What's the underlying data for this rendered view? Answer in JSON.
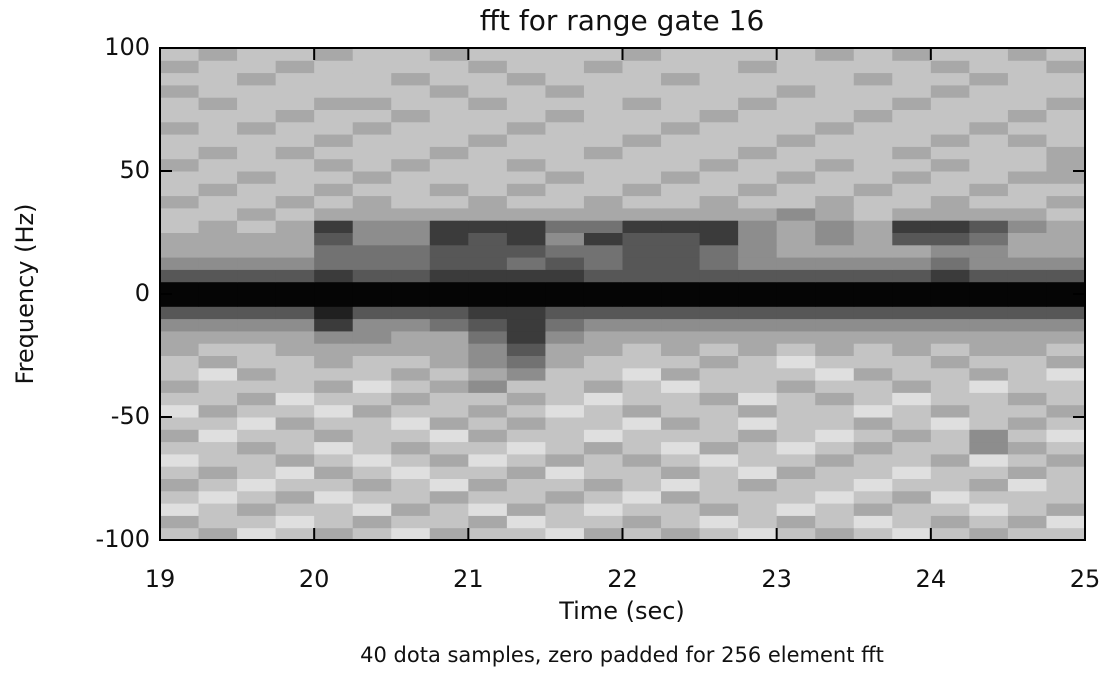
{
  "chart_data": {
    "type": "heatmap",
    "title": "fft for range gate 16",
    "xlabel": "Time (sec)",
    "ylabel": "Frequency (Hz)",
    "note": "40 dota samples, zero padded for  256 element fft",
    "xlim": [
      19,
      25
    ],
    "xticks": [
      19,
      20,
      21,
      22,
      23,
      24,
      25
    ],
    "ylim": [
      -100,
      100
    ],
    "yticks": [
      -100,
      -50,
      0,
      50,
      100
    ],
    "xbins": [
      19,
      19.25,
      19.5,
      19.75,
      20,
      20.25,
      20.5,
      20.75,
      21,
      21.25,
      21.5,
      21.75,
      22,
      22.25,
      22.5,
      22.75,
      23,
      23.25,
      23.5,
      23.75,
      24,
      24.25,
      24.5,
      24.75,
      25
    ],
    "ybins": [
      -100,
      -95,
      -90,
      -85,
      -80,
      -75,
      -70,
      -65,
      -60,
      -55,
      -50,
      -45,
      -40,
      -35,
      -30,
      -25,
      -20,
      -15,
      -10,
      -5,
      0,
      5,
      10,
      15,
      20,
      25,
      30,
      35,
      40,
      45,
      50,
      55,
      60,
      65,
      70,
      75,
      80,
      85,
      90,
      95,
      100
    ],
    "z": [
      [
        2,
        3,
        1,
        2,
        3,
        2,
        1,
        3,
        2,
        2,
        1,
        3,
        2,
        3,
        2,
        1,
        2,
        3,
        2,
        1,
        2,
        3,
        2,
        2
      ],
      [
        3,
        2,
        2,
        1,
        2,
        3,
        2,
        2,
        3,
        1,
        2,
        2,
        3,
        2,
        1,
        2,
        3,
        2,
        1,
        2,
        3,
        2,
        3,
        1
      ],
      [
        1,
        2,
        3,
        2,
        2,
        1,
        3,
        2,
        1,
        3,
        2,
        1,
        2,
        2,
        3,
        2,
        1,
        2,
        3,
        2,
        2,
        1,
        2,
        3
      ],
      [
        2,
        1,
        2,
        3,
        1,
        2,
        2,
        3,
        2,
        2,
        3,
        2,
        1,
        3,
        2,
        2,
        2,
        1,
        2,
        3,
        1,
        2,
        2,
        2
      ],
      [
        3,
        2,
        1,
        2,
        2,
        3,
        2,
        1,
        3,
        2,
        2,
        3,
        2,
        1,
        2,
        3,
        2,
        2,
        1,
        2,
        2,
        3,
        1,
        2
      ],
      [
        2,
        3,
        2,
        1,
        3,
        2,
        1,
        2,
        2,
        3,
        1,
        2,
        2,
        3,
        2,
        1,
        3,
        2,
        2,
        1,
        2,
        2,
        3,
        2
      ],
      [
        1,
        2,
        2,
        3,
        2,
        1,
        2,
        3,
        1,
        2,
        3,
        2,
        3,
        2,
        1,
        2,
        2,
        3,
        2,
        2,
        3,
        1,
        2,
        3
      ],
      [
        2,
        2,
        3,
        2,
        1,
        2,
        3,
        2,
        2,
        1,
        2,
        3,
        2,
        1,
        3,
        2,
        1,
        2,
        3,
        2,
        2,
        4,
        3,
        2
      ],
      [
        3,
        1,
        2,
        2,
        3,
        2,
        2,
        1,
        3,
        2,
        2,
        1,
        2,
        2,
        2,
        3,
        2,
        1,
        2,
        3,
        2,
        4,
        2,
        1
      ],
      [
        2,
        2,
        1,
        3,
        2,
        2,
        1,
        3,
        2,
        3,
        2,
        2,
        1,
        3,
        2,
        1,
        2,
        2,
        3,
        2,
        1,
        2,
        3,
        2
      ],
      [
        1,
        3,
        2,
        2,
        1,
        3,
        2,
        2,
        3,
        2,
        1,
        2,
        3,
        2,
        2,
        3,
        2,
        2,
        1,
        2,
        3,
        2,
        2,
        3
      ],
      [
        2,
        2,
        3,
        1,
        2,
        2,
        3,
        2,
        2,
        3,
        2,
        1,
        2,
        2,
        3,
        1,
        2,
        3,
        2,
        1,
        2,
        2,
        3,
        2
      ],
      [
        3,
        2,
        2,
        2,
        3,
        1,
        2,
        3,
        4,
        2,
        2,
        3,
        2,
        1,
        2,
        2,
        3,
        2,
        2,
        3,
        2,
        1,
        2,
        2
      ],
      [
        2,
        1,
        3,
        2,
        2,
        2,
        3,
        2,
        3,
        4,
        2,
        2,
        1,
        3,
        2,
        2,
        2,
        1,
        3,
        2,
        2,
        3,
        2,
        1
      ],
      [
        2,
        3,
        2,
        2,
        3,
        2,
        2,
        3,
        4,
        5,
        3,
        2,
        2,
        2,
        3,
        2,
        1,
        2,
        2,
        2,
        3,
        2,
        2,
        3
      ],
      [
        3,
        2,
        2,
        3,
        3,
        3,
        3,
        3,
        4,
        6,
        3,
        3,
        2,
        3,
        2,
        3,
        2,
        3,
        2,
        3,
        2,
        3,
        3,
        2
      ],
      [
        3,
        3,
        3,
        3,
        4,
        4,
        3,
        3,
        5,
        7,
        4,
        3,
        3,
        3,
        3,
        3,
        3,
        3,
        3,
        3,
        3,
        3,
        3,
        3
      ],
      [
        4,
        4,
        4,
        4,
        7,
        4,
        4,
        5,
        6,
        7,
        5,
        4,
        4,
        4,
        4,
        4,
        4,
        4,
        4,
        4,
        4,
        4,
        4,
        4
      ],
      [
        6,
        6,
        6,
        6,
        8,
        6,
        6,
        6,
        7,
        7,
        6,
        6,
        6,
        6,
        6,
        6,
        6,
        6,
        6,
        6,
        6,
        6,
        6,
        6
      ],
      [
        9,
        9,
        9,
        9,
        9,
        9,
        9,
        9,
        9,
        9,
        9,
        9,
        9,
        9,
        9,
        9,
        9,
        9,
        9,
        9,
        9,
        9,
        9,
        9
      ],
      [
        9,
        9,
        9,
        9,
        9,
        9,
        9,
        9,
        9,
        9,
        9,
        9,
        9,
        9,
        9,
        9,
        9,
        9,
        9,
        9,
        9,
        9,
        9,
        9
      ],
      [
        6,
        6,
        6,
        6,
        7,
        6,
        6,
        7,
        7,
        7,
        7,
        6,
        6,
        6,
        6,
        6,
        6,
        6,
        6,
        6,
        7,
        6,
        6,
        6
      ],
      [
        4,
        4,
        4,
        4,
        5,
        5,
        5,
        6,
        6,
        5,
        6,
        5,
        6,
        6,
        5,
        4,
        4,
        4,
        4,
        4,
        5,
        4,
        4,
        4
      ],
      [
        3,
        3,
        3,
        3,
        5,
        5,
        5,
        6,
        6,
        6,
        5,
        5,
        6,
        6,
        5,
        4,
        3,
        3,
        3,
        3,
        4,
        4,
        3,
        3
      ],
      [
        3,
        3,
        3,
        3,
        6,
        4,
        4,
        7,
        6,
        7,
        4,
        7,
        6,
        6,
        7,
        4,
        3,
        4,
        3,
        6,
        6,
        5,
        3,
        3
      ],
      [
        2,
        3,
        2,
        3,
        7,
        4,
        4,
        7,
        7,
        7,
        5,
        5,
        7,
        7,
        7,
        4,
        3,
        4,
        3,
        7,
        7,
        6,
        4,
        3
      ],
      [
        2,
        2,
        3,
        2,
        3,
        3,
        3,
        3,
        3,
        3,
        3,
        3,
        3,
        3,
        3,
        3,
        4,
        3,
        2,
        3,
        3,
        3,
        3,
        2
      ],
      [
        3,
        2,
        2,
        3,
        2,
        3,
        2,
        2,
        3,
        2,
        2,
        3,
        2,
        2,
        3,
        2,
        2,
        3,
        2,
        2,
        3,
        2,
        2,
        3
      ],
      [
        2,
        3,
        2,
        2,
        3,
        2,
        2,
        3,
        2,
        3,
        2,
        2,
        3,
        2,
        2,
        3,
        2,
        2,
        3,
        2,
        2,
        3,
        2,
        2
      ],
      [
        2,
        2,
        3,
        2,
        2,
        3,
        2,
        2,
        2,
        2,
        3,
        2,
        2,
        3,
        2,
        2,
        3,
        2,
        2,
        3,
        2,
        2,
        3,
        3
      ],
      [
        3,
        2,
        2,
        2,
        3,
        2,
        3,
        2,
        2,
        3,
        2,
        2,
        2,
        2,
        3,
        2,
        2,
        3,
        2,
        2,
        3,
        2,
        2,
        3
      ],
      [
        2,
        3,
        2,
        3,
        2,
        2,
        2,
        3,
        2,
        2,
        2,
        3,
        2,
        2,
        2,
        3,
        2,
        2,
        2,
        3,
        2,
        2,
        2,
        3
      ],
      [
        2,
        2,
        2,
        2,
        3,
        2,
        2,
        2,
        3,
        2,
        2,
        2,
        3,
        2,
        2,
        2,
        3,
        2,
        2,
        2,
        3,
        2,
        3,
        2
      ],
      [
        3,
        2,
        3,
        2,
        2,
        3,
        2,
        2,
        2,
        3,
        2,
        2,
        2,
        3,
        2,
        2,
        2,
        3,
        2,
        2,
        2,
        3,
        2,
        2
      ],
      [
        2,
        2,
        2,
        3,
        2,
        2,
        3,
        2,
        2,
        2,
        3,
        2,
        2,
        2,
        3,
        2,
        2,
        2,
        3,
        2,
        2,
        2,
        3,
        2
      ],
      [
        2,
        3,
        2,
        2,
        3,
        3,
        2,
        2,
        3,
        2,
        2,
        2,
        3,
        2,
        2,
        3,
        2,
        2,
        2,
        3,
        2,
        2,
        2,
        3
      ],
      [
        3,
        2,
        2,
        2,
        2,
        2,
        2,
        3,
        2,
        2,
        3,
        2,
        2,
        2,
        2,
        2,
        3,
        2,
        2,
        2,
        3,
        2,
        2,
        2
      ],
      [
        2,
        2,
        3,
        2,
        2,
        2,
        3,
        2,
        2,
        3,
        2,
        2,
        2,
        3,
        2,
        2,
        2,
        2,
        3,
        2,
        2,
        3,
        2,
        2
      ],
      [
        3,
        2,
        2,
        3,
        2,
        2,
        2,
        2,
        3,
        2,
        2,
        3,
        2,
        2,
        2,
        3,
        2,
        2,
        2,
        2,
        3,
        2,
        2,
        3
      ],
      [
        2,
        3,
        2,
        2,
        3,
        2,
        2,
        3,
        2,
        2,
        2,
        2,
        3,
        2,
        2,
        2,
        2,
        3,
        2,
        3,
        2,
        2,
        3,
        2
      ]
    ]
  }
}
